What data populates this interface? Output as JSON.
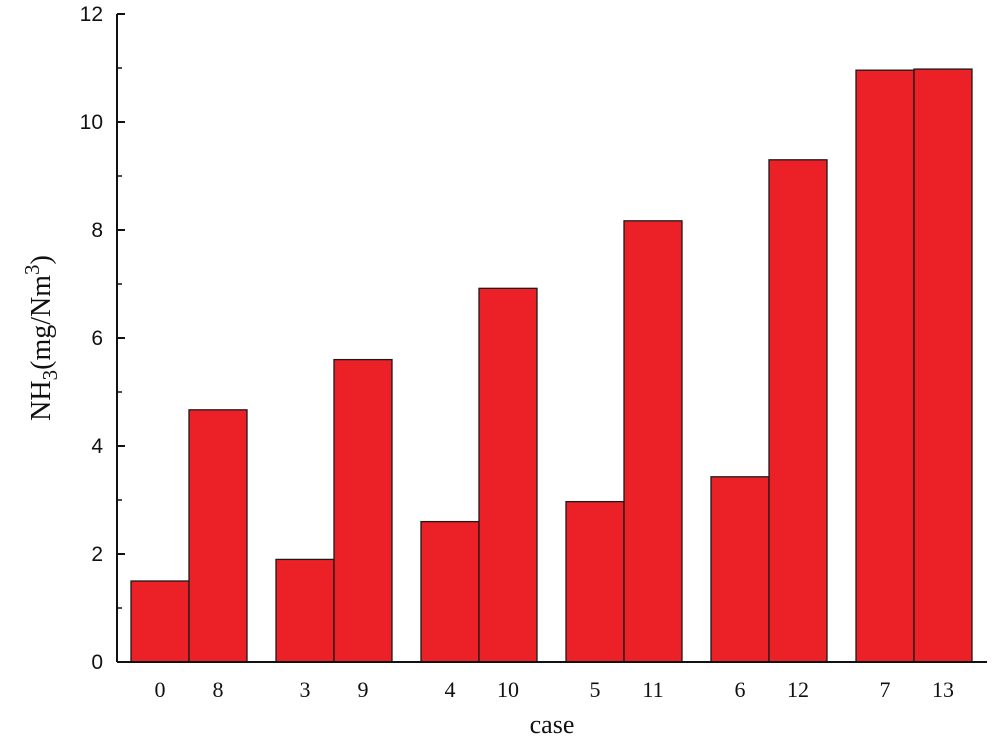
{
  "chart_data": {
    "type": "bar",
    "categories": [
      "0",
      "8",
      "3",
      "9",
      "4",
      "10",
      "5",
      "11",
      "6",
      "12",
      "7",
      "13"
    ],
    "values": [
      1.5,
      4.67,
      1.9,
      5.6,
      2.6,
      6.92,
      2.97,
      8.17,
      3.43,
      9.3,
      10.96,
      10.98
    ],
    "groups": [
      [
        "0",
        "8"
      ],
      [
        "3",
        "9"
      ],
      [
        "4",
        "10"
      ],
      [
        "5",
        "11"
      ],
      [
        "6",
        "12"
      ],
      [
        "7",
        "13"
      ]
    ],
    "xlabel": "case",
    "ylabel_parts": [
      "NH",
      "3",
      "(mg/Nm",
      "3",
      ")"
    ],
    "ylim": [
      0,
      12
    ],
    "yticks": [
      "0",
      "2",
      "4",
      "6",
      "8",
      "10",
      "12"
    ],
    "grid": false,
    "legend": "none",
    "bar_color": "#ec2027",
    "edge_color": "#1a1a1a"
  }
}
